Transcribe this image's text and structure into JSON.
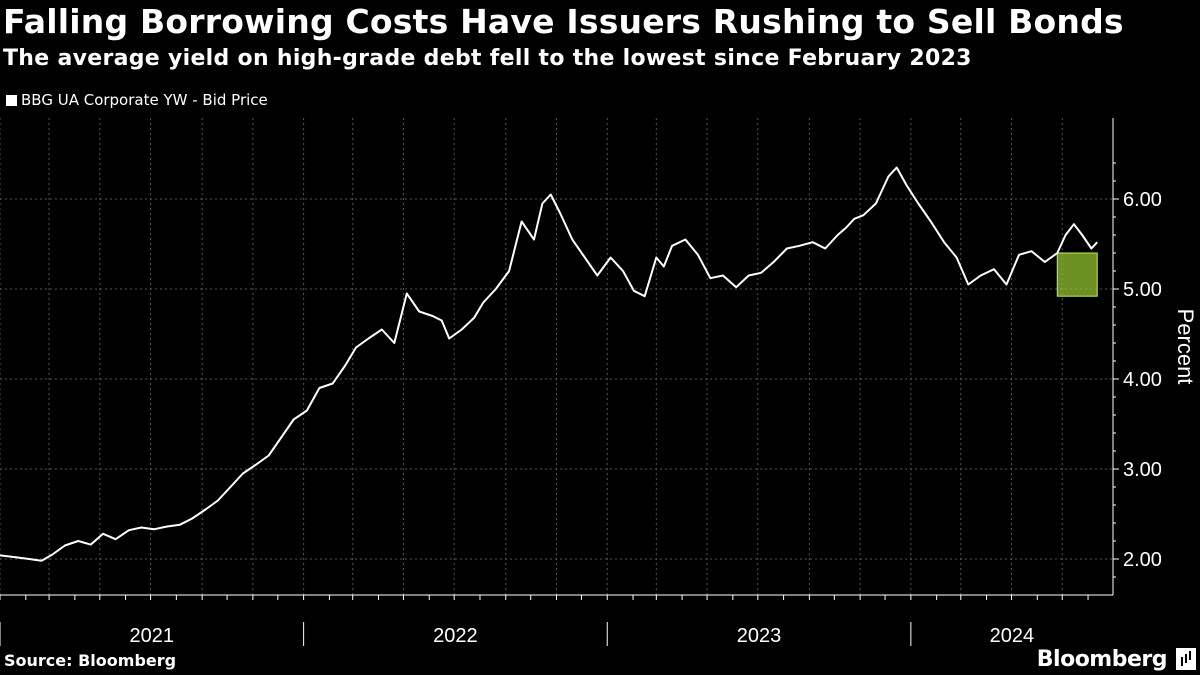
{
  "header": {
    "title": "Falling Borrowing Costs Have Issuers Rushing to Sell Bonds",
    "subtitle": "The average yield on high-grade debt fell to the lowest since February 2023"
  },
  "footer": {
    "source": "Source: Bloomberg",
    "brand": "Bloomberg"
  },
  "colors": {
    "background": "#000000",
    "line": "#ffffff",
    "grid": "#555555",
    "highlight_fill": "#9acd32",
    "highlight_stroke": "#c6f24a"
  },
  "chart_data": {
    "type": "line",
    "title": "Falling Borrowing Costs Have Issuers Rushing to Sell Bonds",
    "subtitle": "The average yield on high-grade debt fell to the lowest since February 2023",
    "ylabel": "Percent",
    "xlabel": "",
    "ylim": [
      1.6,
      6.9
    ],
    "xlim": [
      "2021-01-01",
      "2024-08-31"
    ],
    "yticks": [
      2.0,
      3.0,
      4.0,
      5.0,
      6.0
    ],
    "ytick_labels": [
      "2.00",
      "3.00",
      "4.00",
      "5.00",
      "6.00"
    ],
    "year_labels": [
      "2021",
      "2022",
      "2023",
      "2024"
    ],
    "grid": true,
    "legend_position": "top-left",
    "highlight": {
      "x": [
        "2024-06-25",
        "2024-08-12"
      ],
      "y": [
        4.92,
        5.4
      ]
    },
    "series": [
      {
        "name": "BBG UA Corporate YW - Bid Price",
        "x": [
          "2021-01-01",
          "2021-01-20",
          "2021-02-05",
          "2021-02-20",
          "2021-03-05",
          "2021-03-20",
          "2021-04-05",
          "2021-04-20",
          "2021-05-05",
          "2021-05-20",
          "2021-06-05",
          "2021-06-20",
          "2021-07-05",
          "2021-07-20",
          "2021-08-05",
          "2021-08-20",
          "2021-09-05",
          "2021-09-20",
          "2021-10-05",
          "2021-10-20",
          "2021-11-05",
          "2021-11-20",
          "2021-12-05",
          "2021-12-20",
          "2022-01-05",
          "2022-01-20",
          "2022-02-05",
          "2022-02-20",
          "2022-03-05",
          "2022-03-20",
          "2022-04-05",
          "2022-04-20",
          "2022-05-05",
          "2022-05-20",
          "2022-06-05",
          "2022-06-16",
          "2022-06-25",
          "2022-07-10",
          "2022-07-25",
          "2022-08-05",
          "2022-08-20",
          "2022-09-05",
          "2022-09-20",
          "2022-10-05",
          "2022-10-15",
          "2022-10-25",
          "2022-11-05",
          "2022-11-20",
          "2022-12-05",
          "2022-12-20",
          "2023-01-05",
          "2023-01-20",
          "2023-02-02",
          "2023-02-15",
          "2023-03-01",
          "2023-03-10",
          "2023-03-20",
          "2023-04-05",
          "2023-04-20",
          "2023-05-05",
          "2023-05-20",
          "2023-06-05",
          "2023-06-20",
          "2023-07-05",
          "2023-07-20",
          "2023-08-05",
          "2023-08-20",
          "2023-09-05",
          "2023-09-20",
          "2023-10-05",
          "2023-10-15",
          "2023-10-25",
          "2023-11-05",
          "2023-11-20",
          "2023-12-05",
          "2023-12-15",
          "2023-12-27",
          "2024-01-10",
          "2024-01-25",
          "2024-02-10",
          "2024-02-25",
          "2024-03-10",
          "2024-03-25",
          "2024-04-10",
          "2024-04-25",
          "2024-05-10",
          "2024-05-25",
          "2024-06-10",
          "2024-06-25",
          "2024-07-05",
          "2024-07-15",
          "2024-07-25",
          "2024-08-05",
          "2024-08-12"
        ],
        "values": [
          2.04,
          2.02,
          2.0,
          1.98,
          2.05,
          2.15,
          2.2,
          2.16,
          2.28,
          2.22,
          2.32,
          2.35,
          2.33,
          2.36,
          2.38,
          2.45,
          2.55,
          2.65,
          2.8,
          2.95,
          3.05,
          3.15,
          3.35,
          3.55,
          3.65,
          3.9,
          3.95,
          4.15,
          4.35,
          4.45,
          4.55,
          4.4,
          4.95,
          4.75,
          4.7,
          4.65,
          4.45,
          4.55,
          4.68,
          4.85,
          5.0,
          5.2,
          5.75,
          5.55,
          5.95,
          6.05,
          5.85,
          5.55,
          5.35,
          5.15,
          5.35,
          5.2,
          4.98,
          4.92,
          5.35,
          5.25,
          5.48,
          5.55,
          5.38,
          5.12,
          5.15,
          5.02,
          5.15,
          5.18,
          5.3,
          5.45,
          5.48,
          5.52,
          5.45,
          5.6,
          5.68,
          5.78,
          5.82,
          5.95,
          6.25,
          6.35,
          6.15,
          5.95,
          5.75,
          5.52,
          5.35,
          5.05,
          5.15,
          5.22,
          5.05,
          5.38,
          5.42,
          5.3,
          5.4,
          5.6,
          5.72,
          5.6,
          5.45,
          5.52
        ]
      }
    ]
  }
}
